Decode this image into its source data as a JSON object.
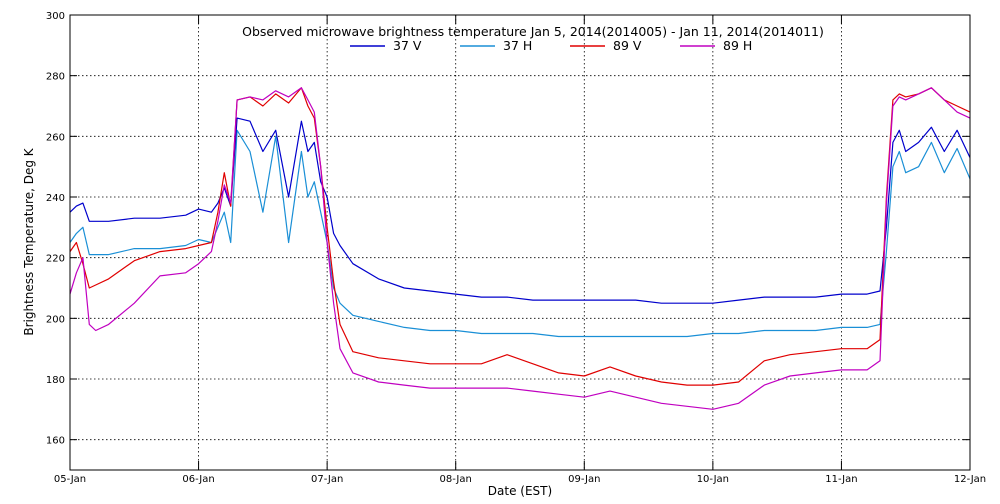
{
  "colors": {
    "37V": "#0000cc",
    "37H": "#1a8fd6",
    "89V": "#e00000",
    "89H": "#c000c0",
    "grid": "#000000",
    "axis": "#000000"
  },
  "chart_data": {
    "type": "line",
    "title": "Observed microwave brightness temperature Jan  5, 2014(2014005) - Jan 11, 2014(2014011)",
    "xlabel": "Date (EST)",
    "ylabel": "Brightness Temperature, Deg K",
    "xlim": [
      0,
      7
    ],
    "ylim": [
      150,
      300
    ],
    "x_tick_values": [
      0,
      1,
      2,
      3,
      4,
      5,
      6,
      7
    ],
    "x_tick_labels": [
      "05-Jan",
      "06-Jan",
      "07-Jan",
      "08-Jan",
      "09-Jan",
      "10-Jan",
      "11-Jan",
      "12-Jan"
    ],
    "y_ticks": [
      160,
      180,
      200,
      220,
      240,
      260,
      280,
      300
    ],
    "grid": true,
    "legend_position": "top-center",
    "x": [
      0,
      0.05,
      0.1,
      0.15,
      0.2,
      0.3,
      0.5,
      0.7,
      0.9,
      1.0,
      1.1,
      1.15,
      1.2,
      1.25,
      1.3,
      1.4,
      1.5,
      1.6,
      1.7,
      1.8,
      1.85,
      1.9,
      1.95,
      2.0,
      2.05,
      2.1,
      2.2,
      2.4,
      2.6,
      2.8,
      3.0,
      3.2,
      3.4,
      3.6,
      3.8,
      4.0,
      4.2,
      4.4,
      4.6,
      4.8,
      5.0,
      5.2,
      5.4,
      5.6,
      5.8,
      6.0,
      6.2,
      6.3,
      6.35,
      6.4,
      6.45,
      6.5,
      6.6,
      6.7,
      6.8,
      6.9,
      7.0
    ],
    "series": [
      {
        "name": "37 V",
        "values": [
          235,
          237,
          238,
          232,
          232,
          232,
          233,
          233,
          234,
          236,
          235,
          238,
          243,
          237,
          266,
          265,
          255,
          262,
          240,
          265,
          255,
          258,
          245,
          240,
          228,
          224,
          218,
          213,
          210,
          209,
          208,
          207,
          207,
          206,
          206,
          206,
          206,
          206,
          205,
          205,
          205,
          206,
          207,
          207,
          207,
          208,
          208,
          209,
          230,
          258,
          262,
          255,
          258,
          263,
          255,
          262,
          253
        ]
      },
      {
        "name": "37 H",
        "values": [
          225,
          228,
          230,
          221,
          221,
          221,
          223,
          223,
          224,
          226,
          225,
          230,
          235,
          225,
          262,
          255,
          235,
          260,
          225,
          255,
          240,
          245,
          235,
          225,
          210,
          205,
          201,
          199,
          197,
          196,
          196,
          195,
          195,
          195,
          194,
          194,
          194,
          194,
          194,
          194,
          195,
          195,
          196,
          196,
          196,
          197,
          197,
          198,
          222,
          250,
          255,
          248,
          250,
          258,
          248,
          256,
          246
        ]
      },
      {
        "name": "89 V",
        "values": [
          222,
          225,
          218,
          210,
          211,
          213,
          219,
          222,
          223,
          224,
          225,
          235,
          248,
          237,
          272,
          273,
          270,
          274,
          271,
          276,
          270,
          266,
          250,
          230,
          212,
          198,
          189,
          187,
          186,
          185,
          185,
          185,
          188,
          185,
          182,
          181,
          184,
          181,
          179,
          178,
          178,
          179,
          186,
          188,
          189,
          190,
          190,
          193,
          240,
          272,
          274,
          273,
          274,
          276,
          272,
          270,
          268
        ]
      },
      {
        "name": "89 H",
        "values": [
          208,
          215,
          220,
          198,
          196,
          198,
          205,
          214,
          215,
          218,
          222,
          232,
          244,
          238,
          272,
          273,
          272,
          275,
          273,
          276,
          272,
          268,
          250,
          225,
          205,
          190,
          182,
          179,
          178,
          177,
          177,
          177,
          177,
          176,
          175,
          174,
          176,
          174,
          172,
          171,
          170,
          172,
          178,
          181,
          182,
          183,
          183,
          186,
          238,
          270,
          273,
          272,
          274,
          276,
          272,
          268,
          266
        ]
      }
    ]
  }
}
